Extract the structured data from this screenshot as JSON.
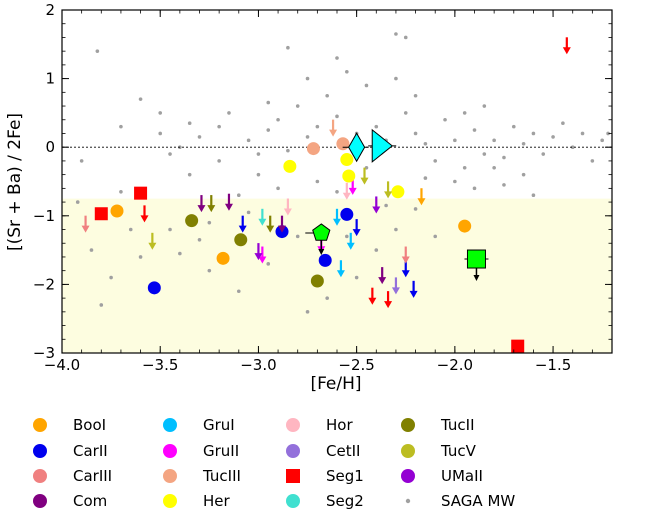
{
  "chart_data": {
    "type": "scatter",
    "xlabel": "[Fe/H]",
    "ylabel": "[(Sr + Ba) / 2Fe]",
    "xlim": [
      -4.0,
      -1.2
    ],
    "ylim": [
      -3,
      2
    ],
    "x_ticks": [
      -4.0,
      -3.5,
      -3.0,
      -2.5,
      -2.0,
      -1.5
    ],
    "x_tick_labels": [
      "−4.0",
      "−3.5",
      "−3.0",
      "−2.5",
      "−2.0",
      "−1.5"
    ],
    "y_ticks": [
      -3,
      -2,
      -1,
      0,
      1,
      2
    ],
    "y_tick_labels": [
      "−3",
      "−2",
      "−1",
      "0",
      "1",
      "2"
    ],
    "reference_line_y": 0,
    "shaded_region_y": [
      -3,
      -0.75
    ],
    "shaded_color": "#fdfde0",
    "legend_position": "below",
    "series": [
      {
        "name": "BooI",
        "color": "#ffa500",
        "marker": "circle",
        "points": [
          [
            -3.72,
            -0.93
          ],
          [
            -3.18,
            -1.62
          ],
          [
            -1.95,
            -1.15
          ]
        ],
        "upper_limits": [
          [
            -2.17,
            -0.7
          ]
        ]
      },
      {
        "name": "CarII",
        "color": "#0000ee",
        "marker": "circle",
        "points": [
          [
            -3.53,
            -2.05
          ],
          [
            -2.88,
            -1.23
          ],
          [
            -2.66,
            -1.65
          ],
          [
            -2.55,
            -0.98
          ]
        ],
        "upper_limits": [
          [
            -3.08,
            -1.1
          ],
          [
            -2.5,
            -1.15
          ],
          [
            -2.25,
            -1.75
          ],
          [
            -2.21,
            -2.05
          ]
        ]
      },
      {
        "name": "CarIII",
        "color": "#f08080",
        "marker": "circle",
        "points": [],
        "upper_limits": [
          [
            -3.88,
            -1.1
          ],
          [
            -2.25,
            -1.55
          ]
        ]
      },
      {
        "name": "Com",
        "color": "#800080",
        "marker": "circle",
        "points": [],
        "upper_limits": [
          [
            -3.29,
            -0.8
          ],
          [
            -3.15,
            -0.78
          ],
          [
            -2.88,
            -1.1
          ],
          [
            -2.37,
            -1.85
          ]
        ]
      },
      {
        "name": "GruI",
        "color": "#00bfff",
        "marker": "circle",
        "points": [],
        "upper_limits": [
          [
            -2.53,
            -1.35
          ],
          [
            -2.58,
            -1.75
          ],
          [
            -2.6,
            -1.0
          ]
        ]
      },
      {
        "name": "GruII",
        "color": "#ff00ff",
        "marker": "circle",
        "points": [],
        "upper_limits": [
          [
            -2.98,
            -1.55
          ],
          [
            -2.68,
            -1.4
          ],
          [
            -2.52,
            -0.55
          ]
        ]
      },
      {
        "name": "TucIII",
        "color": "#f4a582",
        "marker": "circle",
        "points": [
          [
            -2.72,
            -0.02
          ],
          [
            -2.57,
            0.05
          ]
        ],
        "upper_limits": [
          [
            -2.62,
            0.3
          ]
        ]
      },
      {
        "name": "Her",
        "color": "#ffff00",
        "marker": "circle",
        "points": [
          [
            -2.84,
            -0.28
          ],
          [
            -2.55,
            -0.18
          ],
          [
            -2.54,
            -0.42
          ],
          [
            -2.29,
            -0.65
          ]
        ],
        "upper_limits": []
      },
      {
        "name": "Hor",
        "color": "#ffb6c1",
        "marker": "circle",
        "points": [],
        "upper_limits": [
          [
            -2.85,
            -0.85
          ],
          [
            -2.55,
            -0.62
          ]
        ]
      },
      {
        "name": "CetII",
        "color": "#9370db",
        "marker": "circle",
        "points": [],
        "upper_limits": [
          [
            -2.3,
            -2.0
          ]
        ]
      },
      {
        "name": "Seg1",
        "color": "#ff0000",
        "marker": "square",
        "points": [
          [
            -3.8,
            -0.97
          ],
          [
            -3.6,
            -0.67
          ],
          [
            -1.68,
            -2.9
          ]
        ],
        "upper_limits": [
          [
            -3.58,
            -0.95
          ],
          [
            -2.42,
            -2.15
          ],
          [
            -2.34,
            -2.2
          ],
          [
            -1.43,
            1.5
          ]
        ]
      },
      {
        "name": "Seg2",
        "color": "#40e0d0",
        "marker": "circle",
        "points": [],
        "upper_limits": [
          [
            -2.98,
            -1.0
          ]
        ]
      },
      {
        "name": "TucII",
        "color": "#808000",
        "marker": "circle",
        "points": [
          [
            -3.34,
            -1.07
          ],
          [
            -3.09,
            -1.35
          ],
          [
            -2.7,
            -1.95
          ]
        ],
        "upper_limits": [
          [
            -3.24,
            -0.8
          ],
          [
            -2.94,
            -1.1
          ]
        ]
      },
      {
        "name": "TucV",
        "color": "#bcbd22",
        "marker": "circle",
        "points": [],
        "upper_limits": [
          [
            -3.54,
            -1.35
          ],
          [
            -2.46,
            -0.4
          ],
          [
            -2.34,
            -0.6
          ]
        ]
      },
      {
        "name": "UMaII",
        "color": "#9400d3",
        "marker": "circle",
        "points": [],
        "upper_limits": [
          [
            -3.0,
            -1.5
          ],
          [
            -2.4,
            -0.82
          ]
        ]
      },
      {
        "name": "SAGA MW",
        "color": "#a0a0a0",
        "marker": "dot",
        "points": [
          [
            -3.82,
            1.4
          ],
          [
            -3.6,
            0.7
          ],
          [
            -3.7,
            0.3
          ],
          [
            -3.5,
            0.2
          ],
          [
            -3.3,
            0.15
          ],
          [
            -3.45,
            -0.1
          ],
          [
            -3.2,
            -0.2
          ],
          [
            -3.05,
            0.1
          ],
          [
            -2.95,
            0.25
          ],
          [
            -2.9,
            0.4
          ],
          [
            -2.8,
            0.6
          ],
          [
            -2.75,
            1.0
          ],
          [
            -2.7,
            0.3
          ],
          [
            -2.65,
            0.75
          ],
          [
            -2.6,
            0.45
          ],
          [
            -2.5,
            0.2
          ],
          [
            -2.45,
            0.9
          ],
          [
            -2.4,
            0.3
          ],
          [
            -2.35,
            0.1
          ],
          [
            -2.3,
            1.65
          ],
          [
            -2.25,
            0.5
          ],
          [
            -2.2,
            0.2
          ],
          [
            -2.15,
            0.05
          ],
          [
            -2.1,
            -0.2
          ],
          [
            -2.05,
            0.4
          ],
          [
            -2.0,
            0.1
          ],
          [
            -1.95,
            -0.3
          ],
          [
            -1.9,
            0.25
          ],
          [
            -1.85,
            0.6
          ],
          [
            -1.8,
            0.1
          ],
          [
            -1.75,
            -0.15
          ],
          [
            -1.7,
            0.3
          ],
          [
            -1.65,
            0.05
          ],
          [
            -1.6,
            0.2
          ],
          [
            -1.55,
            -0.1
          ],
          [
            -1.5,
            0.15
          ],
          [
            -1.45,
            0.35
          ],
          [
            -1.4,
            0.0
          ],
          [
            -1.35,
            0.2
          ],
          [
            -1.3,
            -0.2
          ],
          [
            -1.25,
            0.1
          ],
          [
            -1.22,
            0.2
          ],
          [
            -2.6,
            1.3
          ],
          [
            -2.55,
            1.1
          ],
          [
            -2.85,
            1.45
          ],
          [
            -3.15,
            0.5
          ],
          [
            -3.35,
            -0.4
          ],
          [
            -3.6,
            -1.6
          ],
          [
            -3.75,
            -1.9
          ],
          [
            -3.8,
            -2.3
          ],
          [
            -3.55,
            -2.05
          ],
          [
            -3.4,
            -1.55
          ],
          [
            -3.25,
            -1.8
          ],
          [
            -3.1,
            -2.1
          ],
          [
            -2.95,
            -1.7
          ],
          [
            -2.8,
            -1.3
          ],
          [
            -2.75,
            -2.4
          ],
          [
            -2.65,
            -2.2
          ],
          [
            -2.9,
            -0.6
          ],
          [
            -3.0,
            -0.4
          ],
          [
            -3.1,
            -0.7
          ],
          [
            -3.25,
            -1.1
          ],
          [
            -3.45,
            -1.2
          ],
          [
            -3.65,
            -1.2
          ],
          [
            -3.9,
            -0.2
          ],
          [
            -3.92,
            -0.8
          ],
          [
            -3.85,
            -1.5
          ],
          [
            -2.2,
            -0.9
          ],
          [
            -2.1,
            -1.3
          ],
          [
            -2.0,
            -0.5
          ],
          [
            -1.9,
            -0.6
          ],
          [
            -1.8,
            -0.3
          ],
          [
            -1.75,
            -0.55
          ],
          [
            -1.65,
            -0.4
          ],
          [
            -1.6,
            -0.7
          ],
          [
            -2.3,
            -1.2
          ],
          [
            -2.4,
            -1.5
          ],
          [
            -2.5,
            -1.9
          ],
          [
            -2.55,
            -1.3
          ],
          [
            -2.35,
            -0.85
          ],
          [
            -3.5,
            0.5
          ],
          [
            -3.4,
            0.0
          ],
          [
            -3.2,
            0.3
          ],
          [
            -3.0,
            -0.1
          ],
          [
            -2.85,
            -0.05
          ],
          [
            -2.75,
            0.15
          ],
          [
            -2.45,
            -0.3
          ],
          [
            -2.15,
            -0.45
          ],
          [
            -1.95,
            0.5
          ],
          [
            -1.85,
            -0.1
          ],
          [
            -2.6,
            -0.65
          ],
          [
            -2.7,
            -0.5
          ],
          [
            -3.05,
            -0.95
          ],
          [
            -3.3,
            -1.35
          ],
          [
            -3.7,
            -0.65
          ],
          [
            -2.3,
            1.0
          ],
          [
            -2.25,
            1.6
          ],
          [
            -2.2,
            0.75
          ],
          [
            -2.95,
            0.65
          ],
          [
            -3.35,
            0.35
          ]
        ]
      }
    ]
  }
}
